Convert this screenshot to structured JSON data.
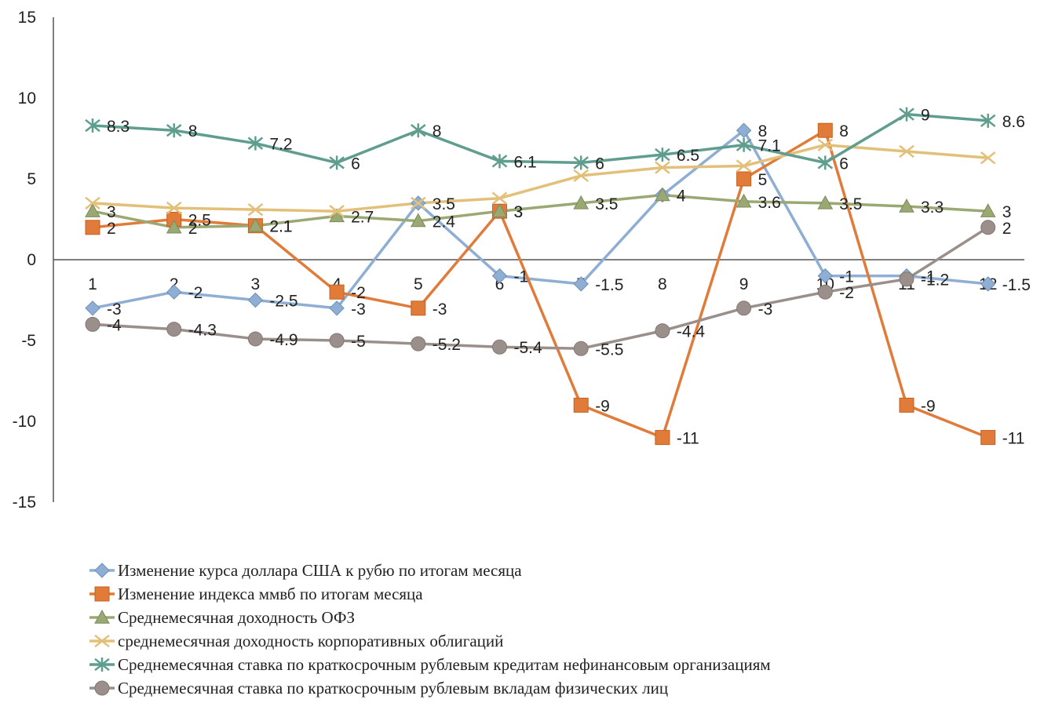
{
  "chart_data": {
    "type": "line",
    "x": [
      1,
      2,
      3,
      4,
      5,
      6,
      7,
      8,
      9,
      10,
      11,
      12
    ],
    "x_tick_labels": [
      "1",
      "2",
      "3",
      "4",
      "5",
      "6",
      "7",
      "8",
      "9",
      "10",
      "11",
      "12"
    ],
    "ylim": [
      -15,
      15
    ],
    "y_ticks": [
      -15,
      -10,
      -5,
      0,
      5,
      10,
      15
    ],
    "grid": false,
    "legend_position": "bottom",
    "series": [
      {
        "name": "Изменение курса доллара США к рубю по итогам месяца",
        "color": "#8eaed4",
        "marker": "diamond",
        "values": [
          -3,
          -2,
          -2.5,
          -3,
          3.5,
          -1,
          -1.5,
          4,
          8,
          -1,
          -1,
          -1.5
        ],
        "labels": [
          "-3",
          "-2",
          "-2.5",
          "-3",
          "3.5",
          "-1",
          "-1.5",
          "",
          "8",
          "-1",
          "-1",
          "-1.5"
        ]
      },
      {
        "name": "Изменение индекса ммвб по итогам месяца",
        "color": "#e07b39",
        "marker": "square",
        "values": [
          2,
          2.5,
          2.1,
          -2,
          -3,
          3,
          -9,
          -11,
          5,
          8,
          -9,
          -11
        ],
        "labels": [
          "2",
          "2.5",
          "2.1",
          "-2",
          "-3",
          "3",
          "-9",
          "-11",
          "5",
          "8",
          "-9",
          "-11"
        ]
      },
      {
        "name": "Среднемесячная доходность ОФЗ",
        "color": "#9aa874",
        "marker": "triangle",
        "values": [
          3,
          2,
          2.1,
          2.7,
          2.4,
          3,
          3.5,
          4,
          3.6,
          3.5,
          3.3,
          3
        ],
        "labels": [
          "3",
          "2",
          "2.1",
          "2.7",
          "2.4",
          "3",
          "3.5",
          "4",
          "3.6",
          "3.5",
          "3.3",
          "3"
        ]
      },
      {
        "name": "среднемесячная доходность корпоративных облигаций",
        "color": "#e3c07a",
        "marker": "x",
        "values": [
          3.5,
          3.2,
          3.1,
          3,
          3.5,
          3.8,
          5.2,
          5.7,
          5.8,
          7.1,
          6.7,
          6.3
        ],
        "labels": [
          "",
          "",
          "",
          "",
          "",
          "",
          "",
          "",
          "",
          "",
          "",
          ""
        ]
      },
      {
        "name": "Среднемесячная ставка по краткосрочным рублевым кредитам нефинансовым организациям",
        "color": "#5f9e8e",
        "marker": "asterisk",
        "values": [
          8.3,
          8,
          7.2,
          6,
          8,
          6.1,
          6,
          6.5,
          7.1,
          6,
          9,
          8.6
        ],
        "labels": [
          "8.3",
          "8",
          "7.2",
          "6",
          "8",
          "6.1",
          "6",
          "6.5",
          "7.1",
          "6",
          "9",
          "8.6"
        ]
      },
      {
        "name": "Среднемесячная ставка по краткосрочным рублевым вкладам физических лиц",
        "color": "#9b8f8c",
        "marker": "circle",
        "values": [
          -4,
          -4.3,
          -4.9,
          -5,
          -5.2,
          -5.4,
          -5.5,
          -4.4,
          -3,
          -2,
          -1.2,
          2
        ],
        "labels": [
          "-4",
          "-4.3",
          "-4.9",
          "-5",
          "-5.2",
          "-5.4",
          "-5.5",
          "-4.4",
          "-3",
          "-2",
          "-1.2",
          "2"
        ]
      }
    ]
  }
}
